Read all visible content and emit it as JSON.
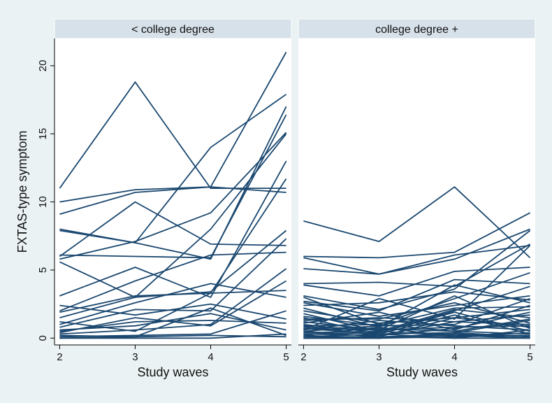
{
  "chart_data": {
    "type": "line",
    "ylabel": "FXTAS-type symptom",
    "xlabel": "Study waves",
    "x_ticks": [
      2,
      3,
      4,
      5
    ],
    "y_ticks": [
      0,
      5,
      10,
      15,
      20
    ],
    "ylim": [
      -0.5,
      22
    ],
    "colors": {
      "line": "#1a476f",
      "strip": "#d7e1ea",
      "plot_bg": "#ffffff",
      "figure_bg": "#eaf2f3"
    },
    "panels": [
      {
        "title": "< college degree",
        "series": [
          [
            11.0,
            18.8,
            11.0,
            11.0
          ],
          [
            10.0,
            10.9,
            11.1,
            10.7
          ],
          [
            9.1,
            10.7,
            11.1,
            21.0
          ],
          [
            8.0,
            7.0,
            14.0,
            17.9
          ],
          [
            7.9,
            7.0,
            5.8,
            17.0
          ],
          [
            6.1,
            6.0,
            5.9,
            16.4
          ],
          [
            6.0,
            10.0,
            6.9,
            6.8
          ],
          [
            5.8,
            7.1,
            9.2,
            15.1
          ],
          [
            5.6,
            3.0,
            8.0,
            15.0
          ],
          [
            3.1,
            5.2,
            3.0,
            13.0
          ],
          [
            2.0,
            4.2,
            6.1,
            6.3
          ],
          [
            1.9,
            3.1,
            3.3,
            11.7
          ],
          [
            1.5,
            3.0,
            3.4,
            7.9
          ],
          [
            1.2,
            0.5,
            3.3,
            3.5
          ],
          [
            1.0,
            2.6,
            4.0,
            3.0
          ],
          [
            0.8,
            2.1,
            2.0,
            7.3
          ],
          [
            0.5,
            1.2,
            1.3,
            1.1
          ],
          [
            0.3,
            0.6,
            1.0,
            5.1
          ],
          [
            0.2,
            0.1,
            2.2,
            0.2
          ],
          [
            0.1,
            0.2,
            0.3,
            2.0
          ],
          [
            0.0,
            0.1,
            0.2,
            0.1
          ],
          [
            0.0,
            0.0,
            0.0,
            0.3
          ],
          [
            0.4,
            1.5,
            0.9,
            4.2
          ],
          [
            0.6,
            0.9,
            1.8,
            0.6
          ],
          [
            2.4,
            1.7,
            2.5,
            1.4
          ]
        ]
      },
      {
        "title": "college degree +",
        "series": [
          [
            8.6,
            7.1,
            11.1,
            5.9
          ],
          [
            6.0,
            5.9,
            6.3,
            9.2
          ],
          [
            5.9,
            4.7,
            5.8,
            8.0
          ],
          [
            5.1,
            4.7,
            6.1,
            6.8
          ],
          [
            4.0,
            4.1,
            3.8,
            6.9
          ],
          [
            3.9,
            3.1,
            4.9,
            5.2
          ],
          [
            3.1,
            2.1,
            3.6,
            7.9
          ],
          [
            3.0,
            1.0,
            2.9,
            4.8
          ],
          [
            2.7,
            2.0,
            4.3,
            4.0
          ],
          [
            2.6,
            1.6,
            2.4,
            3.1
          ],
          [
            2.2,
            0.8,
            3.9,
            2.6
          ],
          [
            2.0,
            1.1,
            1.5,
            2.1
          ],
          [
            1.8,
            0.5,
            2.1,
            1.5
          ],
          [
            1.6,
            0.9,
            1.0,
            2.9
          ],
          [
            1.4,
            1.4,
            2.6,
            1.1
          ],
          [
            1.2,
            0.6,
            0.8,
            0.9
          ],
          [
            1.1,
            1.9,
            0.6,
            2.4
          ],
          [
            1.0,
            0.4,
            1.9,
            0.5
          ],
          [
            0.9,
            0.2,
            1.2,
            1.7
          ],
          [
            0.8,
            0.7,
            0.5,
            0.3
          ],
          [
            0.7,
            0.3,
            0.4,
            1.3
          ],
          [
            0.6,
            1.3,
            0.9,
            0.6
          ],
          [
            0.5,
            0.1,
            1.5,
            0.8
          ],
          [
            0.4,
            0.5,
            0.2,
            0.2
          ],
          [
            0.3,
            0.2,
            0.7,
            1.9
          ],
          [
            0.2,
            0.8,
            0.1,
            0.4
          ],
          [
            0.2,
            0.0,
            0.3,
            0.1
          ],
          [
            0.1,
            0.3,
            0.0,
            0.6
          ],
          [
            0.1,
            0.1,
            0.2,
            0.0
          ],
          [
            0.0,
            0.0,
            0.1,
            0.2
          ],
          [
            0.0,
            0.1,
            0.0,
            0.0
          ],
          [
            0.0,
            0.0,
            0.4,
            0.1
          ],
          [
            0.5,
            0.9,
            2.2,
            2.3
          ],
          [
            1.3,
            1.5,
            1.2,
            1.0
          ],
          [
            0.7,
            0.6,
            3.1,
            0.7
          ],
          [
            0.3,
            0.4,
            2.0,
            3.8
          ],
          [
            2.4,
            2.6,
            3.4,
            2.8
          ],
          [
            0.9,
            1.0,
            0.5,
            1.4
          ],
          [
            1.5,
            0.3,
            1.7,
            0.3
          ],
          [
            0.6,
            2.9,
            1.4,
            6.8
          ]
        ]
      }
    ]
  }
}
